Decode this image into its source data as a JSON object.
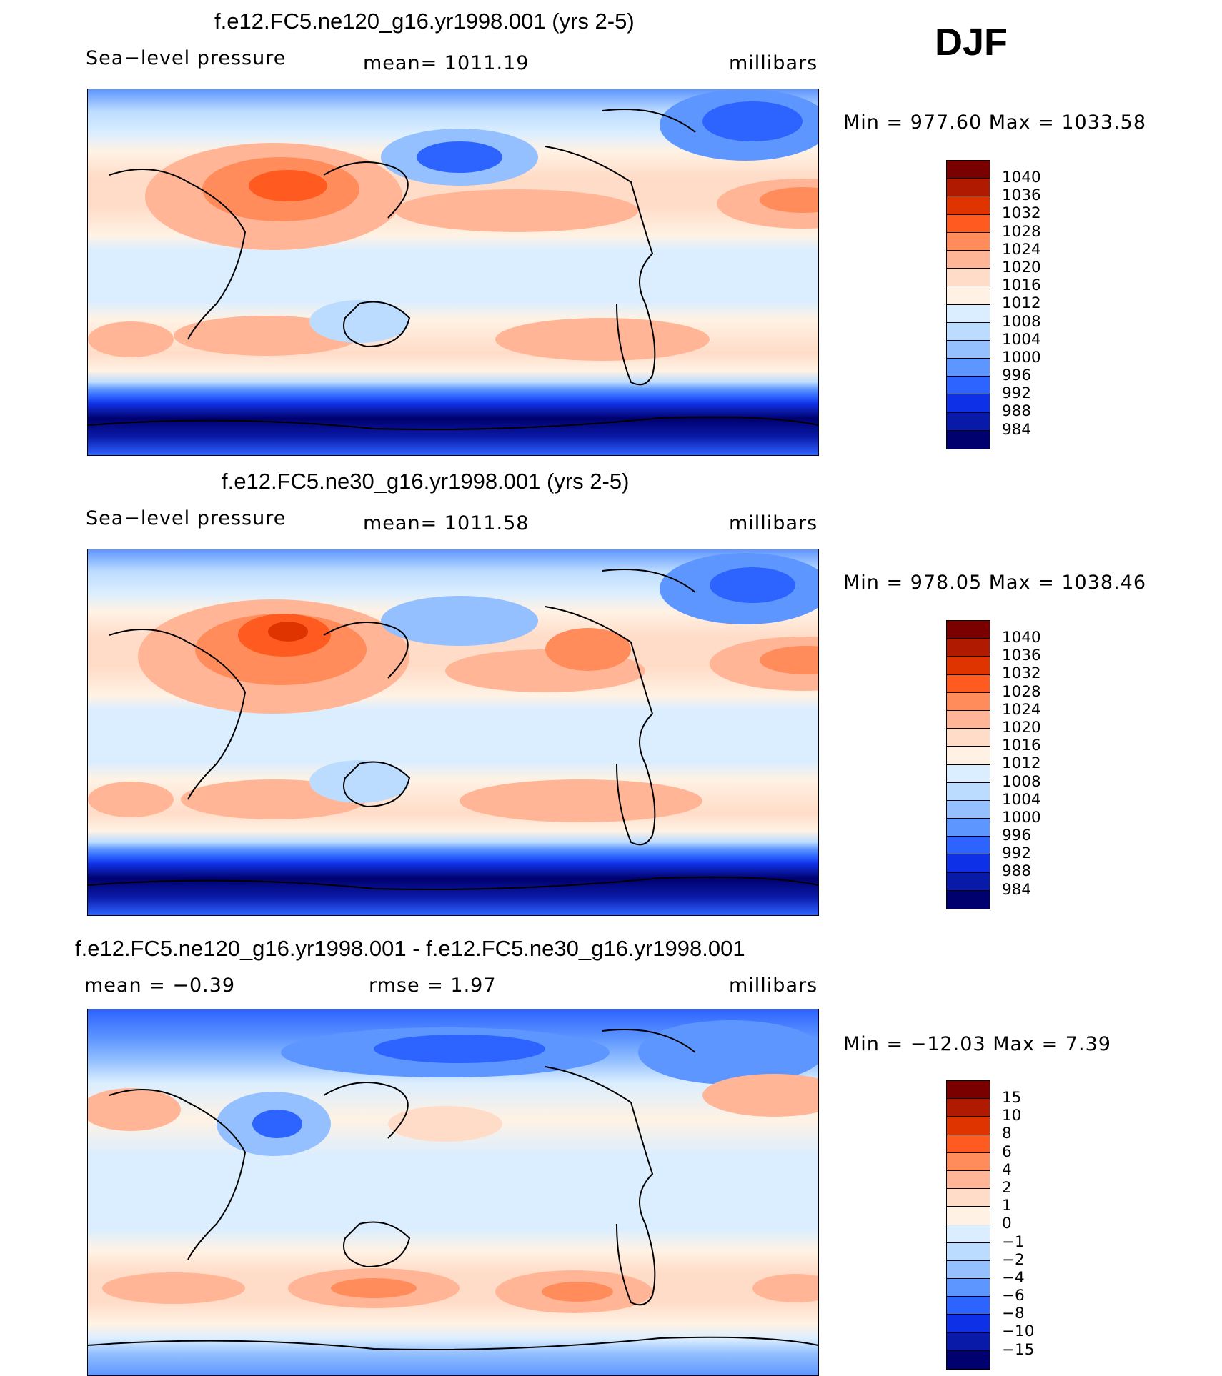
{
  "season": "DJF",
  "panels": [
    {
      "title": "f.e12.FC5.ne120_g16.yr1998.001 (yrs 2-5)",
      "left_label": "Sea−level pressure",
      "center_label": "mean=  1011.19",
      "right_label": "millibars",
      "minmax": "Min  =  977.60  Max  =  1033.58",
      "colorbar": {
        "labels": [
          "1040",
          "1036",
          "1032",
          "1028",
          "1024",
          "1020",
          "1016",
          "1012",
          "1008",
          "1004",
          "1000",
          "996",
          "992",
          "988",
          "984"
        ],
        "colors": [
          "#7a0000",
          "#b01a00",
          "#e03400",
          "#ff5a1f",
          "#ff8c5a",
          "#ffb596",
          "#ffdcc8",
          "#fff2e4",
          "#dbeeff",
          "#bcdcff",
          "#94c0ff",
          "#5e96ff",
          "#2d63ff",
          "#0e30e6",
          "#0a1aa8",
          "#00006e"
        ]
      }
    },
    {
      "title": "f.e12.FC5.ne30_g16.yr1998.001 (yrs 2-5)",
      "left_label": "Sea−level pressure",
      "center_label": "mean=  1011.58",
      "right_label": "millibars",
      "minmax": "Min  =  978.05  Max  =  1038.46",
      "colorbar": {
        "labels": [
          "1040",
          "1036",
          "1032",
          "1028",
          "1024",
          "1020",
          "1016",
          "1012",
          "1008",
          "1004",
          "1000",
          "996",
          "992",
          "988",
          "984"
        ],
        "colors": [
          "#7a0000",
          "#b01a00",
          "#e03400",
          "#ff5a1f",
          "#ff8c5a",
          "#ffb596",
          "#ffdcc8",
          "#fff2e4",
          "#dbeeff",
          "#bcdcff",
          "#94c0ff",
          "#5e96ff",
          "#2d63ff",
          "#0e30e6",
          "#0a1aa8",
          "#00006e"
        ]
      }
    },
    {
      "title": "f.e12.FC5.ne120_g16.yr1998.001 - f.e12.FC5.ne30_g16.yr1998.001",
      "left_label": "mean  =    −0.39",
      "center_label": "rmse  =      1.97",
      "right_label": "millibars",
      "minmax": "Min  =  −12.03  Max  =      7.39",
      "colorbar": {
        "labels": [
          "15",
          "10",
          "8",
          "6",
          "4",
          "2",
          "1",
          "0",
          "−1",
          "−2",
          "−4",
          "−6",
          "−8",
          "−10",
          "−15"
        ],
        "colors": [
          "#7a0000",
          "#b01a00",
          "#e03400",
          "#ff5a1f",
          "#ff8c5a",
          "#ffb596",
          "#ffdcc8",
          "#fff2e4",
          "#dbeeff",
          "#bcdcff",
          "#94c0ff",
          "#5e96ff",
          "#2d63ff",
          "#0e30e6",
          "#0a1aa8",
          "#00006e"
        ]
      }
    }
  ]
}
